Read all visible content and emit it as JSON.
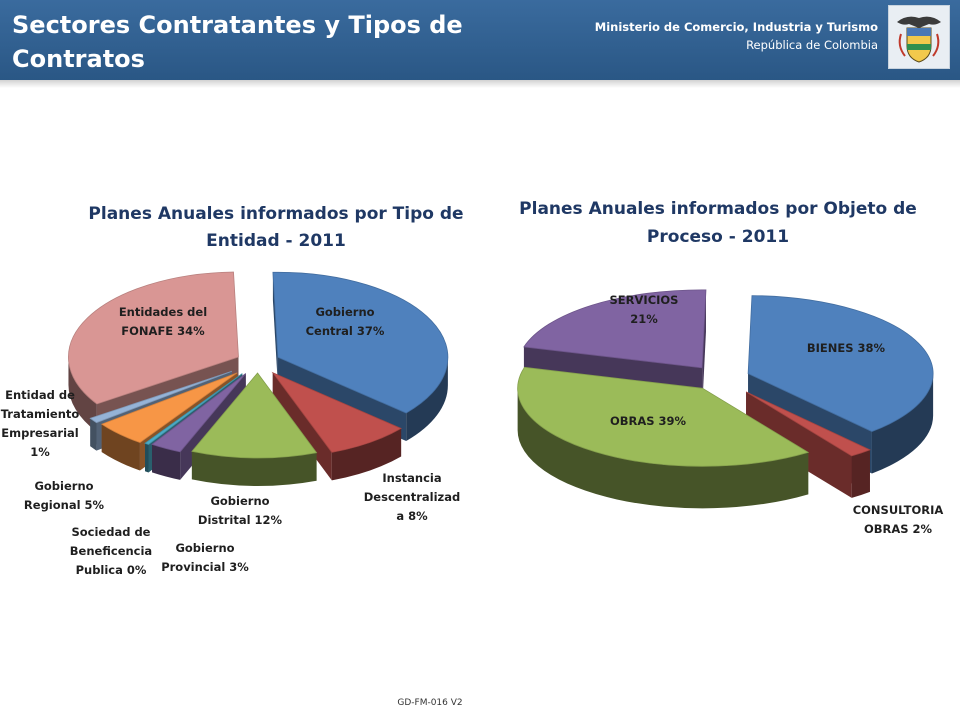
{
  "header": {
    "title": "Sectores Contratantes y Tipos de Contratos",
    "ministry": "Ministerio de Comercio, Industria y Turismo",
    "country": "República de Colombia"
  },
  "footer": {
    "code": "GD-FM-016 V2"
  },
  "colors": {
    "header_bg": "#2f5f8f"
  },
  "chart_data": [
    {
      "type": "pie",
      "title": "Planes Anuales informados por Tipo de Entidad - 2011",
      "slices": [
        {
          "label": "Gobierno Central 37%",
          "value": 37,
          "color": "#4f81bd"
        },
        {
          "label": "Instancia Descentralizada 8%",
          "value": 8,
          "color": "#c0504d"
        },
        {
          "label": "Gobierno Distrital 12%",
          "value": 12,
          "color": "#9bbb59"
        },
        {
          "label": "Gobierno Provincial 3%",
          "value": 3,
          "color": "#8064a2"
        },
        {
          "label": "Sociedad de Beneficencia Publica 0%",
          "value": 0.4,
          "color": "#4bacc6"
        },
        {
          "label": "Gobierno Regional 5%",
          "value": 5,
          "color": "#f79646"
        },
        {
          "label": "Entidad de Tratamiento Empresarial 1%",
          "value": 1,
          "color": "#95b3d7"
        },
        {
          "label": "Entidades del FONAFE 34%",
          "value": 34,
          "color": "#d99694"
        }
      ]
    },
    {
      "type": "pie",
      "title": "Planes Anuales informados por Objeto de Proceso - 2011",
      "slices": [
        {
          "label": "BIENES 38%",
          "value": 38,
          "color": "#4f81bd"
        },
        {
          "label": "CONSULTORIA OBRAS 2%",
          "value": 2,
          "color": "#c0504d"
        },
        {
          "label": "OBRAS 39%",
          "value": 39,
          "color": "#9bbb59"
        },
        {
          "label": "SERVICIOS 21%",
          "value": 21,
          "color": "#8064a2"
        }
      ]
    }
  ]
}
